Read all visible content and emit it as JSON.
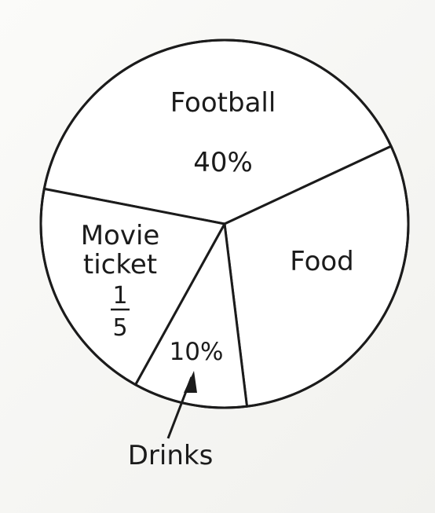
{
  "chart_data": {
    "type": "pie",
    "slices": [
      {
        "label": "Football",
        "value_text": "40%",
        "value": 0.4
      },
      {
        "label": "Food",
        "value_text": "",
        "value": 0.3
      },
      {
        "label": "Drinks",
        "value_text": "10%",
        "value": 0.1
      },
      {
        "label": "Movie ticket",
        "value_text": "1/5",
        "value": 0.2
      }
    ],
    "labels": {
      "football": "Football",
      "football_value": "40%",
      "food": "Food",
      "movie_line1": "Movie",
      "movie_line2": "ticket",
      "movie_frac_num": "1",
      "movie_frac_den": "5",
      "drinks_value": "10%",
      "drinks": "Drinks"
    },
    "colors": {
      "line": "#1b1b1b",
      "fill": "#ffffff"
    }
  }
}
